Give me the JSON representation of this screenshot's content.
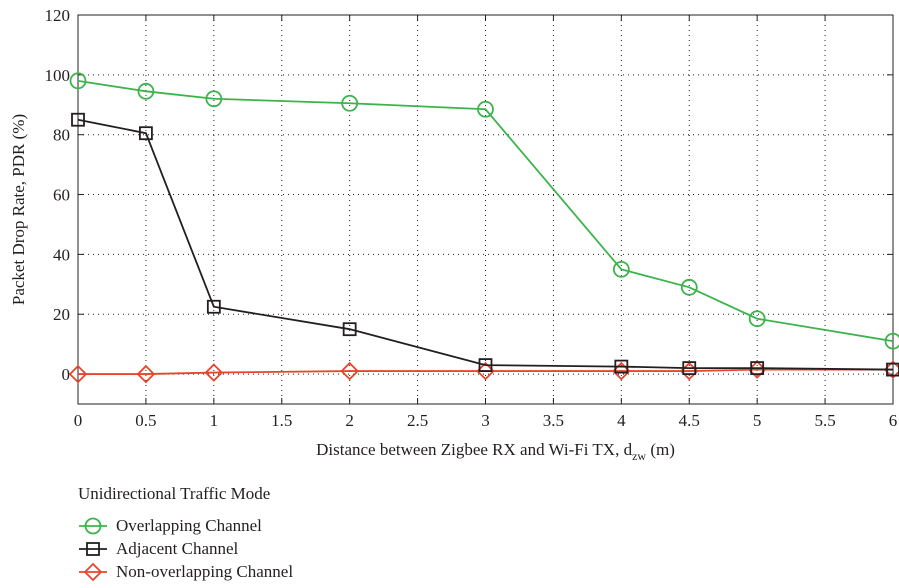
{
  "chart_data": {
    "type": "line",
    "title": "",
    "xlabel": "Distance between Zigbee RX and Wi-Fi TX, d",
    "xlabel_sub": "zw",
    "xlabel_unit": " (m)",
    "ylabel": "Packet Drop Rate, PDR (%)",
    "xlim": [
      0,
      6
    ],
    "ylim": [
      -10,
      120
    ],
    "xticks": [
      0,
      0.5,
      1,
      1.5,
      2,
      2.5,
      3,
      3.5,
      4,
      4.5,
      5,
      5.5,
      6
    ],
    "xtick_labels": [
      "0",
      "0.5",
      "1",
      "1.5",
      "2",
      "2.5",
      "3",
      "3.5",
      "4",
      "4.5",
      "5",
      "5.5",
      "6"
    ],
    "yticks": [
      0,
      20,
      40,
      60,
      80,
      100,
      120
    ],
    "ytick_labels": [
      "0",
      "20",
      "40",
      "60",
      "80",
      "100",
      "120"
    ],
    "grid": true,
    "legend_title": "Unidirectional Traffic Mode",
    "legend_position": "bottom-left, below plot",
    "series": [
      {
        "name": "Overlapping Channel",
        "color": "#3cb44b",
        "marker": "circle",
        "x": [
          0,
          0.5,
          1,
          2,
          3,
          4,
          4.5,
          5,
          6
        ],
        "y": [
          98,
          94.5,
          92,
          90.5,
          88.5,
          35,
          29,
          18.5,
          11
        ]
      },
      {
        "name": "Adjacent Channel",
        "color": "#231f20",
        "marker": "square",
        "x": [
          0,
          0.5,
          1,
          2,
          3,
          4,
          4.5,
          5,
          6
        ],
        "y": [
          85,
          80.5,
          22.5,
          15,
          3,
          2.5,
          2,
          2,
          1.5
        ]
      },
      {
        "name": "Non-overlapping Channel",
        "color": "#e8452c",
        "marker": "diamond",
        "x": [
          0,
          0.5,
          1,
          2,
          3,
          4,
          4.5,
          5,
          6
        ],
        "y": [
          0,
          0,
          0.5,
          1,
          1,
          1,
          1,
          1.5,
          1.5
        ]
      }
    ]
  }
}
